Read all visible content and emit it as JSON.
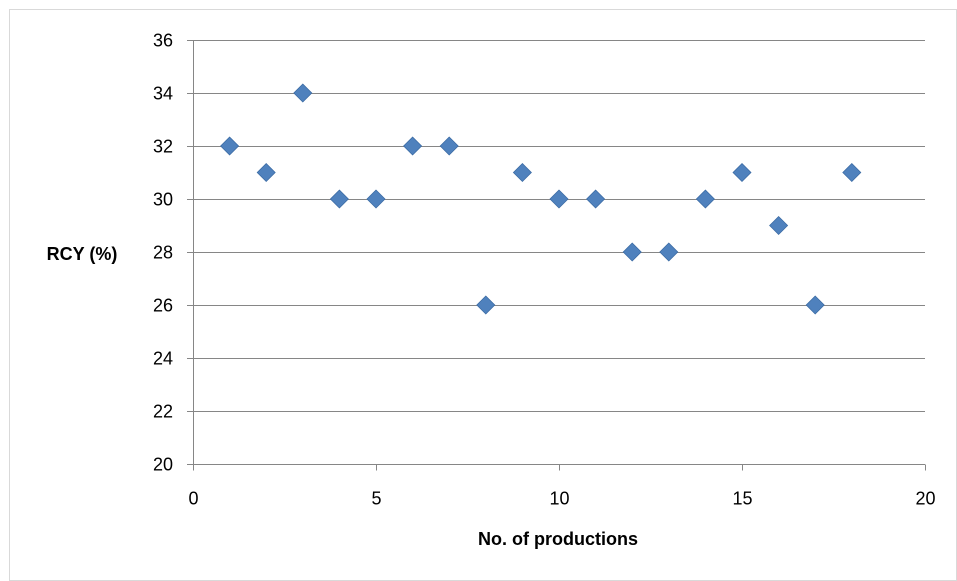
{
  "chart_data": {
    "type": "scatter",
    "title": "",
    "xlabel": "No. of productions",
    "ylabel": "RCY (%)",
    "xlim": [
      0,
      20
    ],
    "ylim": [
      20,
      36
    ],
    "xticks": [
      0,
      5,
      10,
      15,
      20
    ],
    "yticks": [
      20,
      22,
      24,
      26,
      28,
      30,
      32,
      34,
      36
    ],
    "grid": "horizontal",
    "legend": "none",
    "marker": "diamond",
    "color": "#4F81BD",
    "series": [
      {
        "x": [
          1,
          2,
          3,
          4,
          5,
          6,
          7,
          8,
          9,
          10,
          11,
          12,
          13,
          14,
          15,
          16,
          17,
          18
        ],
        "y": [
          32,
          31,
          34,
          30,
          30,
          32,
          32,
          26,
          31,
          30,
          30,
          28,
          28,
          30,
          31,
          29,
          26,
          31
        ]
      }
    ]
  }
}
